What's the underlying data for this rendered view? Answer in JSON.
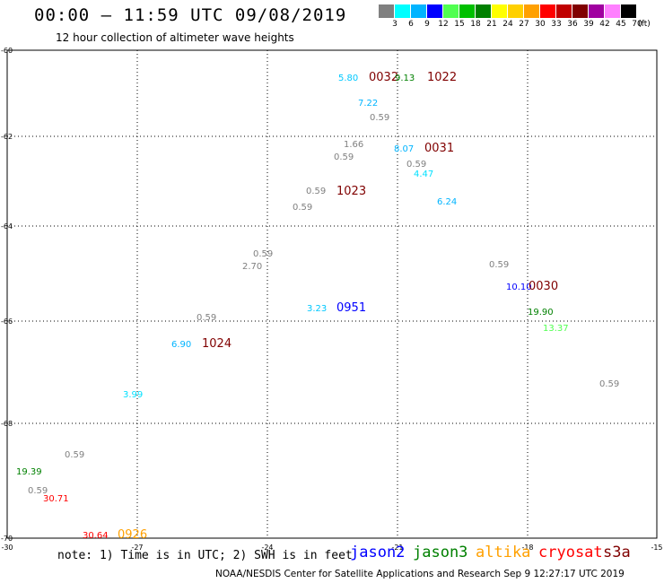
{
  "header": {
    "title": "00:00 – 11:59 UTC 09/08/2019",
    "subtitle": "12 hour collection of altimeter wave heights"
  },
  "legend": {
    "colors": [
      "#808080",
      "#00ffff",
      "#00b4ff",
      "#0000ff",
      "#50ff50",
      "#00c000",
      "#008000",
      "#ffff00",
      "#ffd000",
      "#ffa000",
      "#ff0000",
      "#c00000",
      "#800000",
      "#a000a0",
      "#ff80ff",
      "#000000"
    ],
    "labels": [
      "3",
      "6",
      "9",
      "12",
      "15",
      "18",
      "21",
      "24",
      "27",
      "30",
      "33",
      "36",
      "39",
      "42",
      "45",
      "70"
    ],
    "unit": "(ft)"
  },
  "axes": {
    "y_ticks": [
      "-60",
      "-62",
      "-64",
      "-66",
      "-68",
      "-70"
    ],
    "x_ticks": [
      "-30",
      "-27",
      "-24",
      "-21",
      "-18",
      "-15"
    ]
  },
  "observations": [
    {
      "text": "5.80",
      "color": "#00c8ff"
    },
    {
      "text": "0032",
      "color": "#800000",
      "time": true
    },
    {
      "text": "9.13",
      "color": "#008000"
    },
    {
      "text": "1022",
      "color": "#800000",
      "time": true
    },
    {
      "text": "7.22",
      "color": "#00b4ff"
    },
    {
      "text": "0.59",
      "color": "#808080"
    },
    {
      "text": "1.66",
      "color": "#808080"
    },
    {
      "text": "8.07",
      "color": "#00b4ff"
    },
    {
      "text": "0031",
      "color": "#800000",
      "time": true
    },
    {
      "text": "0.59",
      "color": "#808080"
    },
    {
      "text": "0.59",
      "color": "#808080"
    },
    {
      "text": "4.47",
      "color": "#00e0ff"
    },
    {
      "text": "0.59",
      "color": "#808080"
    },
    {
      "text": "1023",
      "color": "#800000",
      "time": true
    },
    {
      "text": "6.24",
      "color": "#00b4ff"
    },
    {
      "text": "0.59",
      "color": "#808080"
    },
    {
      "text": "0.59",
      "color": "#808080"
    },
    {
      "text": "2.70",
      "color": "#808080"
    },
    {
      "text": "0.59",
      "color": "#808080"
    },
    {
      "text": "10.10",
      "color": "#0000ff"
    },
    {
      "text": "0030",
      "color": "#800000",
      "time": true
    },
    {
      "text": "3.23",
      "color": "#00c8ff"
    },
    {
      "text": "0951",
      "color": "#0000ff",
      "time": true
    },
    {
      "text": "19.90",
      "color": "#008000"
    },
    {
      "text": "0.59",
      "color": "#808080"
    },
    {
      "text": "13.37",
      "color": "#50ff50"
    },
    {
      "text": "6.90",
      "color": "#00b4ff"
    },
    {
      "text": "1024",
      "color": "#800000",
      "time": true
    },
    {
      "text": "0.59",
      "color": "#808080"
    },
    {
      "text": "3.99",
      "color": "#00e0ff"
    },
    {
      "text": "0.59",
      "color": "#808080"
    },
    {
      "text": "19.39",
      "color": "#008000"
    },
    {
      "text": "0.59",
      "color": "#808080"
    },
    {
      "text": "30.71",
      "color": "#ff0000"
    },
    {
      "text": "30.64",
      "color": "#ff0000"
    },
    {
      "text": "0926",
      "color": "#ffa000",
      "time": true
    }
  ],
  "footer": {
    "note": "note: 1) Time is in UTC; 2) SWH is in feet",
    "satellites": [
      {
        "name": "jason2",
        "color": "#0000ff"
      },
      {
        "name": "jason3",
        "color": "#008000"
      },
      {
        "name": "altika",
        "color": "#ffa000"
      },
      {
        "name": "cryosat",
        "color": "#ff0000"
      },
      {
        "name": "s3a",
        "color": "#800000"
      }
    ],
    "credit": "NOAA/NESDIS Center for Satellite Applications and Research     Sep  9 12:27:17 UTC 2019"
  }
}
